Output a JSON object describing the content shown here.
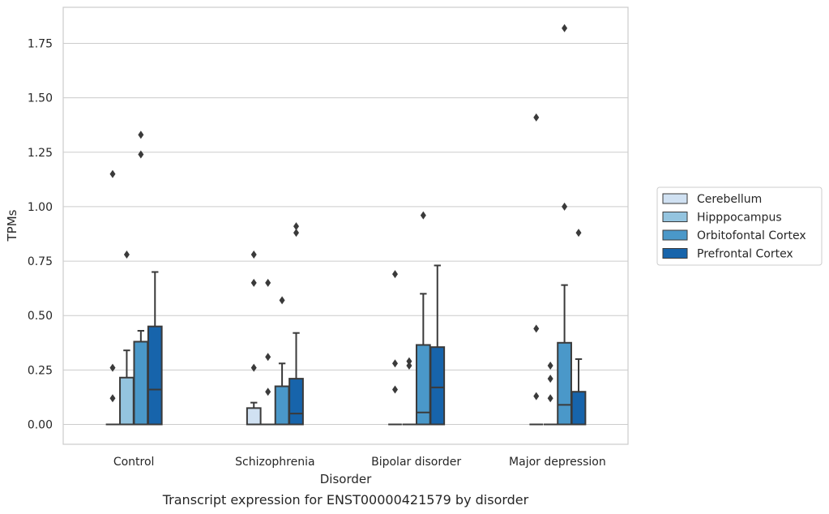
{
  "chart_data": {
    "type": "box",
    "title": "",
    "caption": "Transcript expression for ENST00000421579 by disorder",
    "xlabel": "Disorder",
    "ylabel": "TPMs",
    "ylim": [
      -0.09,
      1.92
    ],
    "yticks": [
      0.0,
      0.25,
      0.5,
      0.75,
      1.0,
      1.25,
      1.5,
      1.75
    ],
    "ytick_labels": [
      "0.00",
      "0.25",
      "0.50",
      "0.75",
      "1.00",
      "1.25",
      "1.50",
      "1.75"
    ],
    "grid": "horizontal",
    "legend_position": "right",
    "categories": [
      "Control",
      "Schizophrenia",
      "Bipolar disorder",
      "Major depression"
    ],
    "colors": {
      "Cerebellum": "#d0e1f2",
      "Hipppocampus": "#94c4df",
      "Orbitofontal Cortex": "#4a98c9",
      "Prefrontal Cortex": "#1764ab"
    },
    "series": [
      {
        "name": "Cerebellum",
        "boxes": [
          {
            "q1": 0,
            "median": 0,
            "q3": 0,
            "whisker_low": 0,
            "whisker_high": 0,
            "outliers": [
              0.12,
              0.26,
              1.15
            ]
          },
          {
            "q1": 0,
            "median": 0,
            "q3": 0.075,
            "whisker_low": 0,
            "whisker_high": 0.1,
            "outliers": [
              0.26,
              0.65,
              0.78
            ]
          },
          {
            "q1": 0,
            "median": 0,
            "q3": 0,
            "whisker_low": 0,
            "whisker_high": 0,
            "outliers": [
              0.16,
              0.28,
              0.69
            ]
          },
          {
            "q1": 0,
            "median": 0,
            "q3": 0,
            "whisker_low": 0,
            "whisker_high": 0,
            "outliers": [
              0.13,
              0.44,
              1.41
            ]
          }
        ]
      },
      {
        "name": "Hipppocampus",
        "boxes": [
          {
            "q1": 0,
            "median": 0,
            "q3": 0.215,
            "whisker_low": 0,
            "whisker_high": 0.34,
            "outliers": [
              0.78
            ]
          },
          {
            "q1": 0,
            "median": 0,
            "q3": 0,
            "whisker_low": 0,
            "whisker_high": 0,
            "outliers": [
              0.15,
              0.31,
              0.65
            ]
          },
          {
            "q1": 0,
            "median": 0,
            "q3": 0,
            "whisker_low": 0,
            "whisker_high": 0,
            "outliers": [
              0.27,
              0.29
            ]
          },
          {
            "q1": 0,
            "median": 0,
            "q3": 0,
            "whisker_low": 0,
            "whisker_high": 0,
            "outliers": [
              0.12,
              0.21,
              0.27
            ]
          }
        ]
      },
      {
        "name": "Orbitofontal Cortex",
        "boxes": [
          {
            "q1": 0,
            "median": 0,
            "q3": 0.38,
            "whisker_low": 0,
            "whisker_high": 0.43,
            "outliers": [
              1.24,
              1.33
            ]
          },
          {
            "q1": 0,
            "median": 0,
            "q3": 0.175,
            "whisker_low": 0,
            "whisker_high": 0.28,
            "outliers": [
              0.57
            ]
          },
          {
            "q1": 0,
            "median": 0.055,
            "q3": 0.365,
            "whisker_low": 0,
            "whisker_high": 0.6,
            "outliers": [
              0.96
            ]
          },
          {
            "q1": 0,
            "median": 0.09,
            "q3": 0.375,
            "whisker_low": 0,
            "whisker_high": 0.64,
            "outliers": [
              1.0,
              1.82
            ]
          }
        ]
      },
      {
        "name": "Prefrontal Cortex",
        "boxes": [
          {
            "q1": 0,
            "median": 0.16,
            "q3": 0.45,
            "whisker_low": 0,
            "whisker_high": 0.7,
            "outliers": []
          },
          {
            "q1": 0,
            "median": 0.05,
            "q3": 0.21,
            "whisker_low": 0,
            "whisker_high": 0.42,
            "outliers": [
              0.88,
              0.91
            ]
          },
          {
            "q1": 0,
            "median": 0.17,
            "q3": 0.355,
            "whisker_low": 0,
            "whisker_high": 0.73,
            "outliers": []
          },
          {
            "q1": 0,
            "median": 0,
            "q3": 0.15,
            "whisker_low": 0,
            "whisker_high": 0.3,
            "outliers": [
              0.88
            ]
          }
        ]
      }
    ]
  }
}
